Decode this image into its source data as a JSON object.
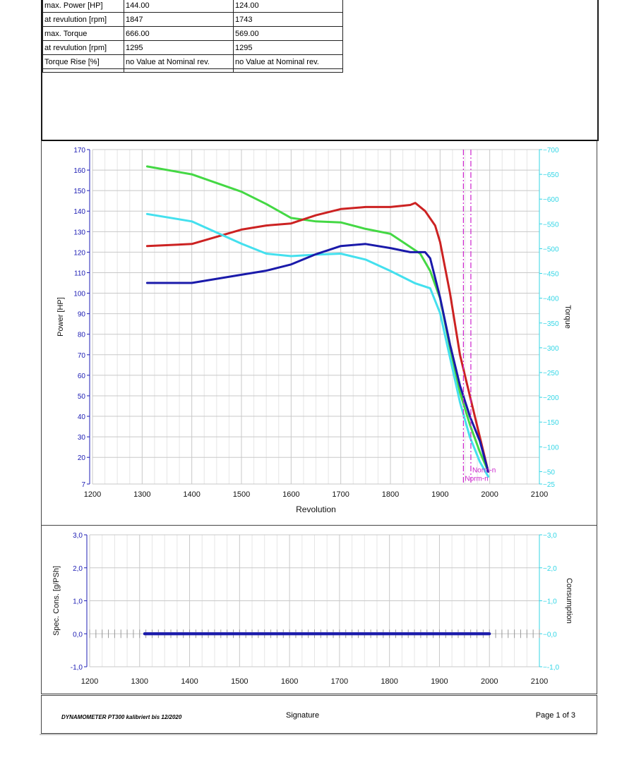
{
  "stats_table": {
    "rows": [
      [
        "max. Power [HP]",
        "144.00",
        "124.00"
      ],
      [
        "at revulution [rpm]",
        "1847",
        "1743"
      ],
      [
        "max. Torque",
        "666.00",
        "569.00"
      ],
      [
        "at revulution [rpm]",
        "1295",
        "1295"
      ],
      [
        "Torque Rise [%]",
        "no Value at Nominal rev.",
        "no Value at Nominal rev."
      ]
    ]
  },
  "colors": {
    "axis_left": "#1c1cb4",
    "axis_right": "#33d6e6",
    "marker": "#cc22cc",
    "grid": "#c8c8c8",
    "green": "#44d844",
    "red": "#cc2222",
    "cyan": "#44e0ee",
    "blue": "#1a1aaa"
  },
  "chart_data": [
    {
      "type": "line",
      "xlabel": "Revolution",
      "ylabel": "Power [HP]",
      "y2label": "Torque",
      "xlim": [
        1200,
        2100
      ],
      "ylim": [
        7,
        170
      ],
      "y2lim": [
        25,
        700
      ],
      "xticks": [
        "1200",
        "1300",
        "1400",
        "1500",
        "1600",
        "1700",
        "1800",
        "1900",
        "2000",
        "2100"
      ],
      "yticks": [
        {
          "v": 170,
          "t": "170"
        },
        {
          "v": 160,
          "t": "160"
        },
        {
          "v": 150,
          "t": "150"
        },
        {
          "v": 140,
          "t": "140"
        },
        {
          "v": 130,
          "t": "130"
        },
        {
          "v": 120,
          "t": "120"
        },
        {
          "v": 110,
          "t": "110"
        },
        {
          "v": 100,
          "t": "100"
        },
        {
          "v": 90,
          "t": "90"
        },
        {
          "v": 80,
          "t": "80"
        },
        {
          "v": 70,
          "t": "70"
        },
        {
          "v": 60,
          "t": "60"
        },
        {
          "v": 50,
          "t": "50"
        },
        {
          "v": 40,
          "t": "40"
        },
        {
          "v": 30,
          "t": "30"
        },
        {
          "v": 20,
          "t": "20"
        },
        {
          "v": 7,
          "t": "7"
        }
      ],
      "y2ticks": [
        {
          "v": 700,
          "t": "700"
        },
        {
          "v": 650,
          "t": "650"
        },
        {
          "v": 600,
          "t": "600"
        },
        {
          "v": 550,
          "t": "550"
        },
        {
          "v": 500,
          "t": "500"
        },
        {
          "v": 450,
          "t": "450"
        },
        {
          "v": 400,
          "t": "400"
        },
        {
          "v": 350,
          "t": "350"
        },
        {
          "v": 300,
          "t": "300"
        },
        {
          "v": 250,
          "t": "250"
        },
        {
          "v": 200,
          "t": "200"
        },
        {
          "v": 150,
          "t": "150"
        },
        {
          "v": 100,
          "t": "100"
        },
        {
          "v": 50,
          "t": "50"
        },
        {
          "v": 25,
          "t": "25"
        }
      ],
      "grid": true,
      "series": [
        {
          "color": "green",
          "axis": "y2",
          "x": [
            1310,
            1400,
            1500,
            1550,
            1600,
            1650,
            1700,
            1750,
            1800,
            1830,
            1860,
            1880,
            1900,
            1920,
            1940,
            1960,
            1980,
            1997
          ],
          "y": [
            666,
            650,
            615,
            590,
            562,
            555,
            553,
            540,
            530,
            510,
            490,
            455,
            400,
            300,
            210,
            145,
            90,
            50
          ]
        },
        {
          "color": "red",
          "axis": "y",
          "x": [
            1310,
            1400,
            1500,
            1550,
            1600,
            1650,
            1700,
            1750,
            1800,
            1840,
            1850,
            1870,
            1890,
            1900,
            1920,
            1940,
            1960,
            1980,
            1997
          ],
          "y": [
            123,
            124,
            131,
            133,
            134,
            138,
            141,
            142,
            142,
            143,
            144,
            140,
            133,
            125,
            100,
            70,
            50,
            30,
            13
          ]
        },
        {
          "color": "cyan",
          "axis": "y2",
          "x": [
            1310,
            1400,
            1500,
            1550,
            1600,
            1650,
            1700,
            1750,
            1800,
            1850,
            1880,
            1900,
            1920,
            1940,
            1960,
            1980,
            1997
          ],
          "y": [
            570,
            555,
            510,
            490,
            485,
            488,
            490,
            478,
            455,
            430,
            420,
            370,
            280,
            190,
            120,
            70,
            40
          ]
        },
        {
          "color": "blue",
          "axis": "y",
          "x": [
            1310,
            1400,
            1500,
            1550,
            1600,
            1650,
            1700,
            1750,
            1800,
            1840,
            1870,
            1880,
            1900,
            1920,
            1940,
            1960,
            1980,
            1997
          ],
          "y": [
            105,
            105,
            109,
            111,
            114,
            119,
            123,
            124,
            122,
            120,
            120,
            117,
            98,
            75,
            55,
            40,
            28,
            13
          ]
        }
      ],
      "markers": [
        {
          "x": 1947,
          "label": "Norm-n",
          "label_y": 10
        },
        {
          "x": 1962,
          "label": "Norm-n",
          "label_y": 14
        }
      ]
    },
    {
      "type": "line",
      "xlabel": "",
      "ylabel": "Spec. Cons. [g/PSh]",
      "y2label": "Consumption",
      "xlim": [
        1200,
        2100
      ],
      "ylim": [
        -1,
        3
      ],
      "xticks": [
        "1200",
        "1300",
        "1400",
        "1500",
        "1600",
        "1700",
        "1800",
        "1900",
        "2000",
        "2100"
      ],
      "yticks": [
        {
          "v": 3,
          "t": "3,0"
        },
        {
          "v": 2,
          "t": "2,0"
        },
        {
          "v": 1,
          "t": "1,0"
        },
        {
          "v": 0,
          "t": "0,0"
        },
        {
          "v": -1,
          "t": "-1,0"
        }
      ],
      "y2ticks": [
        {
          "v": 3,
          "t": "3,0"
        },
        {
          "v": 2,
          "t": "2,0"
        },
        {
          "v": 1,
          "t": "1,0"
        },
        {
          "v": 0,
          "t": "0,0"
        },
        {
          "v": -1,
          "t": "-1,0"
        }
      ],
      "grid": true,
      "series": [
        {
          "color": "blue",
          "axis": "y",
          "x": [
            1310,
            2000
          ],
          "y": [
            0,
            0
          ]
        }
      ]
    }
  ],
  "footer": {
    "left": "DYNAMOMETER PT300 kalibriert bis 12/2020",
    "middle": "Signature",
    "right": "Page 1 of 3"
  }
}
